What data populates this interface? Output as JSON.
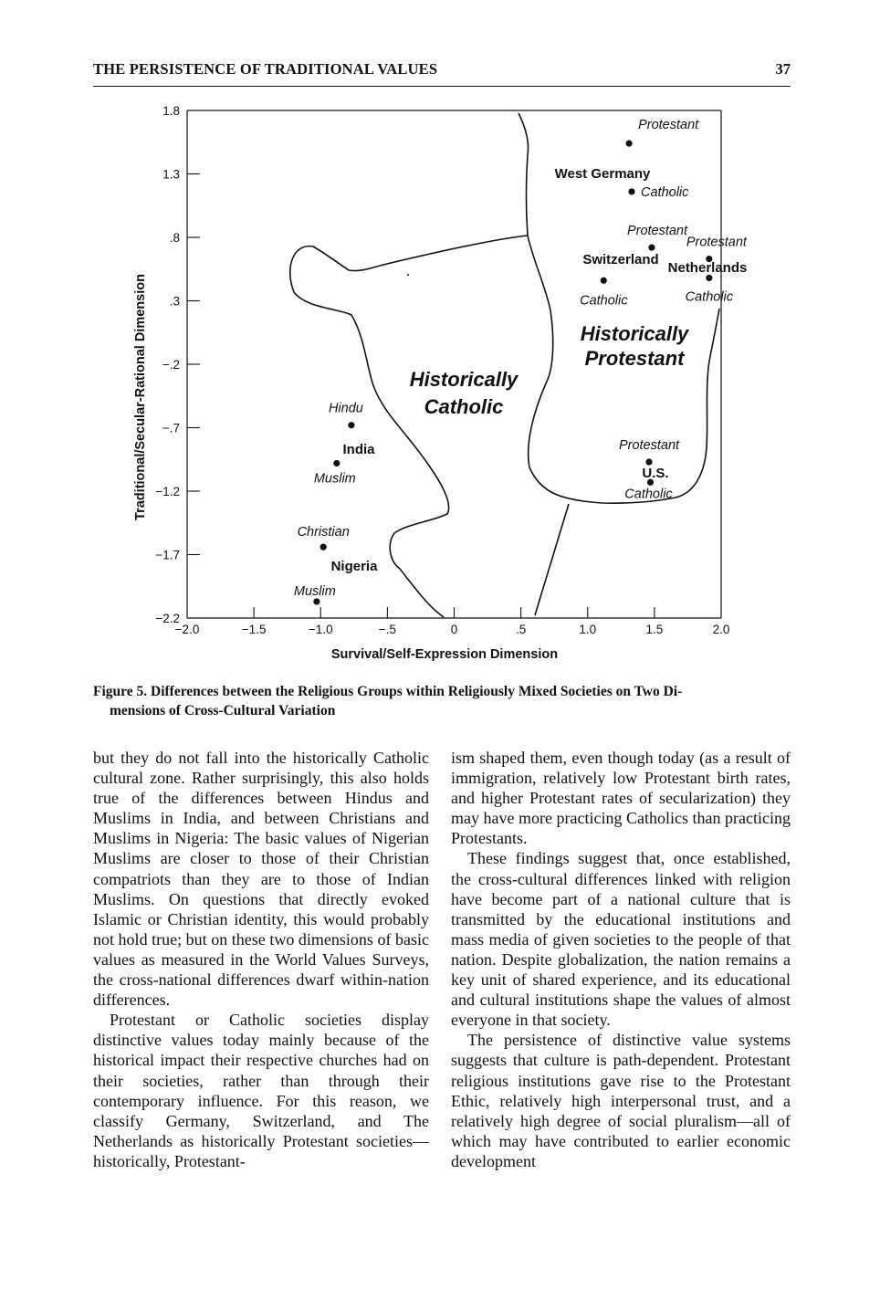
{
  "header": {
    "title": "THE PERSISTENCE OF TRADITIONAL VALUES",
    "page_number": "37"
  },
  "chart_data": {
    "type": "scatter",
    "xlabel": "Survival/Self-Expression Dimension",
    "ylabel": "Traditional/Secular-Rational Dimension",
    "xlim": [
      -2.0,
      2.0
    ],
    "ylim": [
      -2.2,
      1.8
    ],
    "x_ticks": [
      -2.0,
      -1.5,
      -1.0,
      -0.5,
      0,
      0.5,
      1.0,
      1.5,
      2.0
    ],
    "x_tick_labels": [
      "−2.0",
      "−1.5",
      "−1.0",
      "−.5",
      "0",
      ".5",
      "1.0",
      "1.5",
      "2.0"
    ],
    "y_ticks": [
      1.8,
      1.3,
      0.8,
      0.3,
      -0.2,
      -0.7,
      -1.2,
      -1.7,
      -2.2
    ],
    "y_tick_labels": [
      "1.8",
      "1.3",
      ".8",
      ".3",
      "−.2",
      "−.7",
      "−1.2",
      "−1.7",
      "−2.2"
    ],
    "zones": [
      {
        "lines": [
          "Historically",
          "Catholic"
        ]
      },
      {
        "lines": [
          "Historically",
          "Protestant"
        ]
      }
    ],
    "countries": [
      {
        "name": "West Germany",
        "points": [
          {
            "group": "Protestant",
            "x": 1.31,
            "y": 1.54
          },
          {
            "group": "Catholic",
            "x": 1.33,
            "y": 1.16
          }
        ]
      },
      {
        "name": "Switzerland",
        "points": [
          {
            "group": "Protestant",
            "x": 1.48,
            "y": 0.72
          },
          {
            "group": "Catholic",
            "x": 1.12,
            "y": 0.46
          }
        ]
      },
      {
        "name": "Netherlands",
        "points": [
          {
            "group": "Protestant",
            "x": 1.91,
            "y": 0.63
          },
          {
            "group": "Catholic",
            "x": 1.91,
            "y": 0.48
          }
        ]
      },
      {
        "name": "U.S.",
        "points": [
          {
            "group": "Protestant",
            "x": 1.46,
            "y": -0.97
          },
          {
            "group": "Catholic",
            "x": 1.47,
            "y": -1.13
          }
        ]
      },
      {
        "name": "India",
        "points": [
          {
            "group": "Hindu",
            "x": -0.77,
            "y": -0.68
          },
          {
            "group": "Muslim",
            "x": -0.88,
            "y": -0.98
          }
        ]
      },
      {
        "name": "Nigeria",
        "points": [
          {
            "group": "Christian",
            "x": -0.98,
            "y": -1.64
          },
          {
            "group": "Muslim",
            "x": -1.03,
            "y": -2.07
          }
        ]
      }
    ]
  },
  "figure_caption": {
    "label": "Figure 5.",
    "text_line1": "Differences between the Religious Groups within Religiously Mixed Societies on Two Di-",
    "text_line2": "mensions of Cross-Cultural Variation"
  },
  "body": {
    "left_column": [
      "but they do not fall into the historically Catholic cultural zone. Rather surprisingly, this also holds true of the differences between Hindus and Muslims in India, and between Christians and Muslims in Nigeria: The basic values of Nigerian Muslims are closer to those of their Christian compatriots than they are to those of Indian Muslims. On questions that directly evoked Islamic or Christian identity, this would probably not hold true; but on these two dimensions of basic values as measured in the World Values Surveys, the cross-national differences dwarf within-nation differences.",
      "Protestant or Catholic societies display distinctive values today mainly because of the historical impact their respective churches had on their societies, rather than through their contemporary influence. For this reason, we classify Germany, Switzerland, and The Netherlands as historically Protestant societies—historically, Protestant-"
    ],
    "right_column": [
      "ism shaped them, even though today (as a result of immigration, relatively low Protestant birth rates, and higher Protestant rates of secularization) they may have more practicing Catholics than practicing Protestants.",
      "These findings suggest that, once established, the cross-cultural differences linked with religion have become part of a national culture that is transmitted by the educational institutions and mass media of given societies to the people of that nation. Despite globalization, the nation remains a key unit of shared experience, and its educational and cultural institutions shape the values of almost everyone in that society.",
      "The persistence of distinctive value systems suggests that culture is path-dependent. Protestant religious institutions gave rise to the Protestant Ethic, relatively high interpersonal trust, and a relatively high degree of social pluralism—all of which may have contributed to earlier economic development"
    ]
  }
}
